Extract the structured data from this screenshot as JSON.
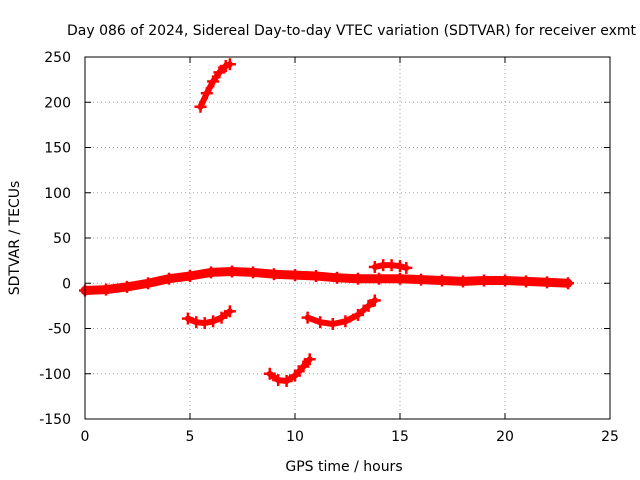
{
  "chart_data": {
    "type": "scatter",
    "title": "Day 086 of 2024, Sidereal Day-to-day VTEC variation (SDTVAR) for receiver exmt",
    "xlabel": "GPS time / hours",
    "ylabel": "SDTVAR / TECUs",
    "xlim": [
      0,
      25
    ],
    "ylim": [
      -150,
      250
    ],
    "xticks": [
      0,
      5,
      10,
      15,
      20,
      25
    ],
    "yticks": [
      -150,
      -100,
      -50,
      0,
      50,
      100,
      150,
      200,
      250
    ],
    "grid": true,
    "marker": "plus",
    "color": "#ff0000",
    "series": [
      {
        "name": "main-trace",
        "points": [
          [
            0,
            -8
          ],
          [
            1,
            -7
          ],
          [
            2,
            -4
          ],
          [
            3,
            0
          ],
          [
            4,
            5
          ],
          [
            5,
            8
          ],
          [
            6,
            12
          ],
          [
            7,
            13
          ],
          [
            8,
            12
          ],
          [
            9,
            10
          ],
          [
            10,
            9
          ],
          [
            11,
            8
          ],
          [
            12,
            6
          ],
          [
            13,
            5
          ],
          [
            14,
            5
          ],
          [
            15,
            5
          ],
          [
            16,
            4
          ],
          [
            17,
            3
          ],
          [
            18,
            2
          ],
          [
            19,
            3
          ],
          [
            20,
            3
          ],
          [
            21,
            2
          ],
          [
            22,
            1
          ],
          [
            23,
            0
          ]
        ]
      },
      {
        "name": "arc-high",
        "points": [
          [
            5.5,
            195
          ],
          [
            5.8,
            210
          ],
          [
            6.1,
            223
          ],
          [
            6.4,
            233
          ],
          [
            6.7,
            240
          ],
          [
            6.9,
            242
          ]
        ]
      },
      {
        "name": "arc-pos-20",
        "points": [
          [
            13.8,
            18
          ],
          [
            14.2,
            20
          ],
          [
            14.6,
            20
          ],
          [
            15.0,
            19
          ],
          [
            15.3,
            17
          ]
        ]
      },
      {
        "name": "arc-neg-40a",
        "points": [
          [
            4.9,
            -39
          ],
          [
            5.3,
            -43
          ],
          [
            5.7,
            -44
          ],
          [
            6.1,
            -42
          ],
          [
            6.5,
            -38
          ],
          [
            6.9,
            -31
          ]
        ]
      },
      {
        "name": "arc-neg-40b",
        "points": [
          [
            10.6,
            -38
          ],
          [
            11.2,
            -43
          ],
          [
            11.8,
            -45
          ],
          [
            12.4,
            -42
          ],
          [
            13.0,
            -35
          ],
          [
            13.5,
            -25
          ],
          [
            13.8,
            -19
          ]
        ]
      },
      {
        "name": "arc-neg-100",
        "points": [
          [
            8.8,
            -100
          ],
          [
            9.2,
            -107
          ],
          [
            9.6,
            -108
          ],
          [
            10.0,
            -102
          ],
          [
            10.4,
            -92
          ],
          [
            10.7,
            -84
          ]
        ]
      }
    ]
  }
}
